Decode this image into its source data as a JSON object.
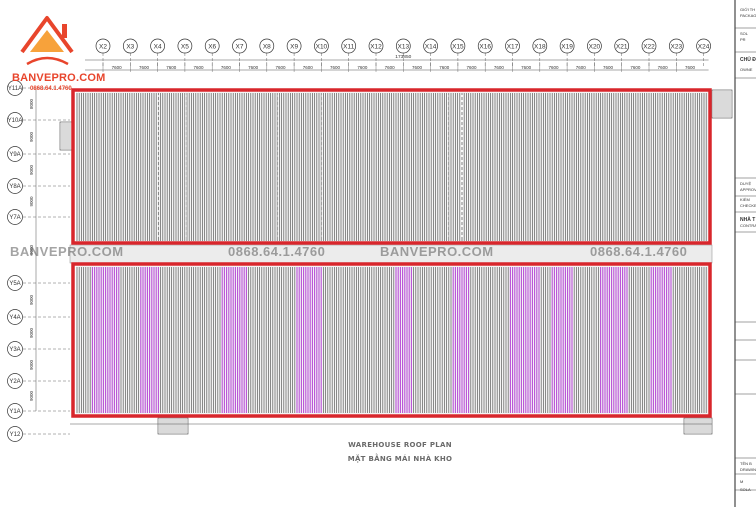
{
  "brand": {
    "name": "BANVEPRO.COM",
    "phone": "0868.64.1.4760",
    "accent": "#e8452c"
  },
  "drawing": {
    "title": "WAREHOUSE ROOF PLAN",
    "subtitle": "MẶT BẰNG MÁI NHÀ KHO",
    "frame_color": "#d8262c",
    "lower_panel_color": "#b84fd6",
    "sheet_color": "#5a5a5a"
  },
  "grid": {
    "columns": [
      "X2",
      "X3",
      "X4",
      "X5",
      "X6",
      "X7",
      "X8",
      "X9",
      "X10",
      "X11",
      "X12",
      "X13",
      "X14",
      "X15",
      "X16",
      "X17",
      "X18",
      "X19",
      "X20",
      "X21",
      "X22",
      "X23",
      "X24"
    ],
    "rows": [
      "Y11A",
      "Y10A",
      "Y9A",
      "Y8A",
      "Y7A",
      "Y5A",
      "Y4A",
      "Y3A",
      "Y2A",
      "Y1A",
      "Y12"
    ],
    "bay_spacing": [
      "7600",
      "7600",
      "7600",
      "7600",
      "7600",
      "7600",
      "7600",
      "7600",
      "7600",
      "7600",
      "7600",
      "7600",
      "7600",
      "7600",
      "7600",
      "7600",
      "7600",
      "7600",
      "7600",
      "7600",
      "7600",
      "7600"
    ],
    "total_length": "173850",
    "row_spacing": [
      "8000",
      "9000",
      "9000",
      "9000",
      "9000",
      "9000",
      "9000",
      "9000",
      "9000"
    ]
  },
  "watermarks": [
    {
      "text": "BANVEPRO.COM"
    },
    {
      "text": "0868.64.1.4760"
    },
    {
      "text": "BANVEPRO.COM"
    },
    {
      "text": "0868.64.1.4760"
    }
  ],
  "title_block": {
    "lines": [
      "GIỚI TH",
      "PACKAGE",
      "SOL",
      "PR",
      "CHỦ Đ",
      "OWNE",
      "DUYỆ",
      "APPROV",
      "KIỂM",
      "CHECKE",
      "NHÀ T",
      "CONTRA",
      "TÊN B",
      "DRAWIN",
      "M",
      "SOLA"
    ]
  }
}
